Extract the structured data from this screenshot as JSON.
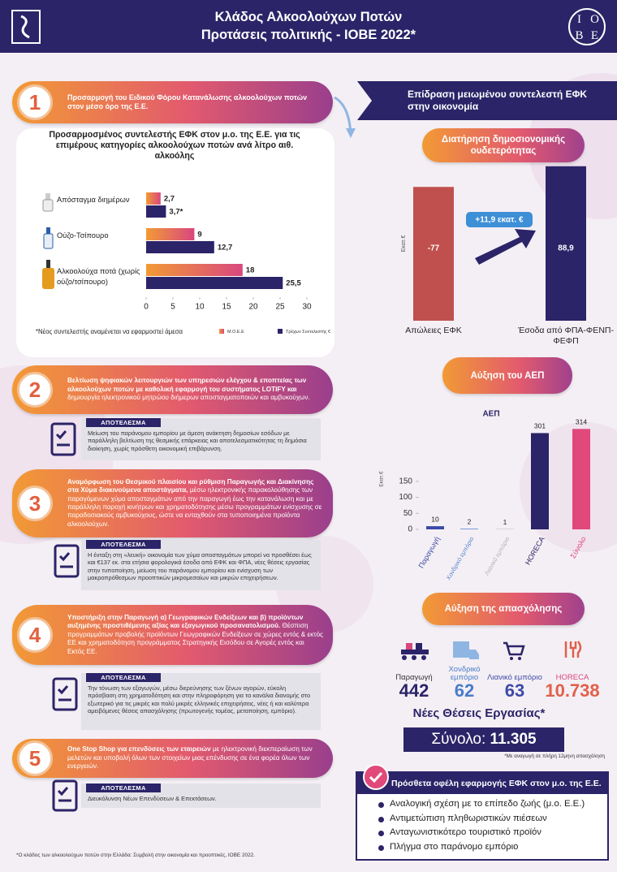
{
  "header": {
    "title_line1": "Κλάδος Αλκοολούχων Ποτών",
    "title_line2": "Προτάσεις πολιτικής - ΙΟΒΕ 2022*",
    "logo_letters": [
      "Ι",
      "Ο",
      "Β",
      "Ε"
    ]
  },
  "proposals": [
    {
      "number": "1",
      "bold": "Προσαρμογή του Ειδικού Φόρου Κατανάλωσης αλκοολούχων ποτών στον μέσο όρο της Ε.Ε."
    },
    {
      "number": "2",
      "bold": "Βελτίωση ψηφιακών λειτουργιών των υπηρεσιών ελέγχου & εποπτείας των αλκοολούχων ποτών με καθολική εφαρμογή του συστήματος LOTIFY και",
      "text": "δημιουργία ηλεκτρονικού μητρώου διήμερων αποσταγματοποιών και αμβυκούχων.",
      "result": {
        "label": "ΑΠΟΤΕΛΕΣΜΑ",
        "text": "Μείωση του παράνομου εμπορίου με άμεση ανάκτηση δημοσίων εσόδων με παράλληλη βελτίωση της θεσμικής επάρκειας και αποτελεσματικότητας τη δημόσια διοίκηση, χωρίς πρόσθετη οικονομική επιβάρυνση."
      }
    },
    {
      "number": "3",
      "bold": "Αναμόρφωση του Θεσμικού πλαισίου και ρύθμιση Παραγωγής και Διακίνησης στα Χύμα διακινούμενα αποστάγματα,",
      "text": "μέσω ηλεκτρονικής παρακολούθησης των παραγόμενων χύμα αποσταγμάτων από την παραγωγή έως την κατανάλωση και με παράλληλη παροχή κινήτρων και χρηματοδότησης μέσω προγραμμάτων ενίσχυσης σε παραδοσιακούς αμβυκούχους, ώστε να ενταχθούν στα τυποποιημένα προϊόντα αλκοολούχων.",
      "result": {
        "label": "ΑΠΟΤΕΛΕΣΜΑ",
        "text": "Η ένταξη στη «λευκή» οικονομία των χύμα αποσταγμάτων μπορεί να προσθέσει έως και €137 εκ. στα ετήσια φορολογικά έσοδα από ΕΦΚ και ΦΠΑ, νέες θέσεις εργασίας στην τυποποίηση, μείωση του παράνομου εμπορίου και ενίσχυση των μακροπρόθεσμων προοπτικών μικρομεσαίων και μικρών επιχειρήσεων."
      }
    },
    {
      "number": "4",
      "bold": "Υποστήριξη στην Παραγωγή α) Γεωγραφικών Ενδείξεων και β) προϊόντων αυξημένης προστιθέμενης αξίας και εξαγωγικού προσανατολισμού.",
      "text": "Θέσπιση προγραμμάτων προβολής προϊόντων Γεωγραφικών Ενδείξεων σε χώρες εντός & εκτός ΕΕ και χρηματοδότηση προγράμματος Στρατηγικής Εισόδου σε Αγορές εντός και Εκτός ΕΕ.",
      "result": {
        "label": "ΑΠΟΤΕΛΕΣΜΑ",
        "text": "Την τόνωση των εξαγωγών, μέσω διερεύνησης των ξένων αγορών, εύκολη πρόσβαση στη χρηματοδότηση και στην πληροφόρηση για τα κανάλια διανομής στο εξωτερικό για τις μικρές και πολύ μικρές ελληνικές επιχειρήσεις, νέες ή και καλύτερα αμειβόμενες θέσεις απασχόλησης (πρωτογενής τομέας, μεταποίηση, εμπόριο)."
      }
    },
    {
      "number": "5",
      "bold": "One Stop Shop για επενδύσεις των εταιρειών",
      "text": "με ηλεκτρονική διεκπεραίωση των μελετών και υποβολή όλων των στοιχείων μιας επένδυσης σε ένα φορέα όλων των ενεργειών.",
      "result": {
        "label": "ΑΠΟΤΕΛΕΣΜΑ",
        "text": "Διευκόλυνση Νέων Επενδύσεων & Επεκτάσεων."
      }
    }
  ],
  "chart_data": [
    {
      "type": "bar",
      "orientation": "horizontal",
      "title": "Προσαρμοσμένος συντελεστής ΕΦΚ στον μ.ο. της Ε.Ε. για τις επιμέρους κατηγορίες αλκοολούχων ποτών ανά λίτρο αιθ. αλκοόλης",
      "categories": [
        "Απόσταγμα διημέρων",
        "Ούζο-Τσίπουρο",
        "Αλκοολούχα ποτά (χωρίς ούζο/τσίπουρο)"
      ],
      "series": [
        {
          "name": "Μ.Ο.Ε.Ε",
          "color": "#d9477f",
          "values": [
            2.7,
            9,
            18
          ],
          "value_labels": [
            "2,7",
            "9",
            "18"
          ]
        },
        {
          "name": "Τρέχων Συντελεστής €",
          "color": "#2b2468",
          "values": [
            3.7,
            12.7,
            25.5
          ],
          "value_labels": [
            "3,7*",
            "12,7",
            "25,5"
          ]
        }
      ],
      "xlim": [
        0,
        30
      ],
      "xticks": [
        0,
        5,
        10,
        15,
        20,
        25,
        30
      ],
      "note": "*Νέος συντελεστής αναμένεται να εφαρμοστεί άμεσα"
    },
    {
      "type": "bar",
      "title": "Διατήρηση δημοσιονομικής ουδετερότητας",
      "ylabel": "Εκατ.€",
      "categories": [
        "Απώλειες ΕΦΚ",
        "Έσοδα από ΦΠΑ-ΦΕΝΠ-ΦΕΦΠ"
      ],
      "values": [
        -77,
        88.9
      ],
      "value_labels": [
        "-77",
        "88,9"
      ],
      "colors": [
        "#c0504d",
        "#2b2468"
      ],
      "annotation": "+11,9 εκατ. €"
    },
    {
      "type": "bar",
      "header": "Αύξηση του ΑΕΠ",
      "title": "ΑΕΠ",
      "ylabel": "Εκατ.€",
      "categories": [
        "Παραγωγή",
        "Χονδρικό εμπόριο",
        "Λιανικό εμπόριο",
        "HORECA",
        "Σύνολο"
      ],
      "values": [
        10,
        2,
        1,
        301,
        314
      ],
      "colors": [
        "#3d4aa8",
        "#5b86d1",
        "#b3b3b3",
        "#2b2468",
        "#e0497a"
      ],
      "ylim": [
        0,
        330
      ],
      "yticks": [
        0,
        50,
        100,
        150
      ]
    }
  ],
  "impact": {
    "title": "Επίδραση μειωμένου συντελεστή ΕΦΚ στην οικονομία"
  },
  "employment": {
    "header": "Αύξηση της απασχόλησης",
    "items": [
      {
        "label": "Παραγωγή",
        "value": "442"
      },
      {
        "label": "Χονδρικό εμπόριο",
        "value": "62"
      },
      {
        "label": "Λιανικό εμπόριο",
        "value": "63"
      },
      {
        "label": "HORECA",
        "value": "10.738"
      }
    ],
    "subtitle": "Νέες Θέσεις Εργασίας*",
    "total_label": "Σύνολο:",
    "total_value": "11.305",
    "note": "*Με αναγωγή σε πλήρη 12μηνη απασχόληση"
  },
  "benefits": {
    "title": "Πρόσθετα οφέλη εφαρμογής ΕΦΚ στον μ.ο. της Ε.Ε.",
    "items": [
      "Αναλογική σχέση με το επίπεδο ζωής (μ.ο. Ε.Ε.)",
      "Αντιμετώπιση πληθωριστικών πιέσεων",
      "Ανταγωνιστικότερο τουριστικό προϊόν",
      "Πλήγμα στο παράνομο εμπόριο"
    ]
  },
  "footnote": "*Ο κλάδος των αλκοολούχων ποτών στην Ελλάδα: Συμβολή στην οικονομία και προοπτικές, ΙΟΒΕ 2022."
}
